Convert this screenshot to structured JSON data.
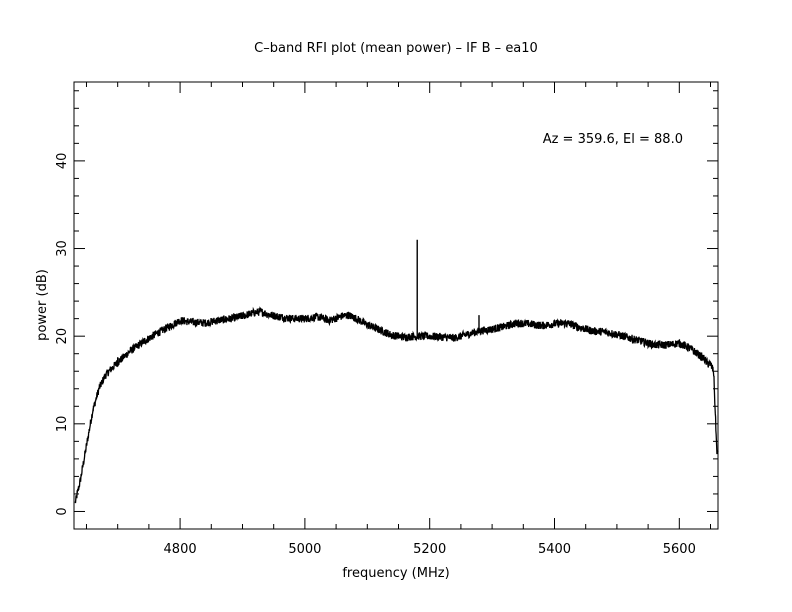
{
  "chart_data": {
    "type": "line",
    "title": "C–band RFI plot (mean power) – IF B – ea10",
    "xlabel": "frequency (MHz)",
    "ylabel": "power (dB)",
    "annotation": "Az = 359.6, El = 88.0",
    "xlim": [
      4630,
      5662
    ],
    "ylim": [
      -2,
      49
    ],
    "x_ticks": [
      4800,
      5000,
      5200,
      5400,
      5600
    ],
    "y_ticks": [
      0,
      10,
      20,
      30,
      40
    ],
    "x_ticks_text": [
      "4800",
      "5000",
      "5200",
      "5400",
      "5600"
    ],
    "y_ticks_text": [
      "0",
      "10",
      "20",
      "30",
      "40"
    ],
    "grid": false,
    "line_color": "#000000",
    "series": [
      {
        "x": [
          4632,
          4640,
          4650,
          4660,
          4670,
          4680,
          4690,
          4700,
          4720,
          4740,
          4760,
          4780,
          4800,
          4820,
          4840,
          4860,
          4880,
          4900,
          4920,
          4930,
          4940,
          4960,
          4980,
          5000,
          5020,
          5040,
          5060,
          5070,
          5080,
          5100,
          5120,
          5140,
          5160,
          5180,
          5200,
          5220,
          5240,
          5260,
          5280,
          5300,
          5320,
          5340,
          5360,
          5380,
          5400,
          5420,
          5440,
          5460,
          5480,
          5500,
          5520,
          5540,
          5560,
          5580,
          5600,
          5620,
          5640,
          5645,
          5650,
          5655,
          5660,
          5662
        ],
        "y": [
          1.0,
          3.5,
          7.5,
          11.5,
          14.0,
          15.5,
          16.3,
          17.0,
          18.3,
          19.3,
          20.2,
          21.0,
          21.8,
          21.6,
          21.5,
          21.8,
          22.0,
          22.3,
          22.7,
          22.8,
          22.5,
          22.2,
          22.0,
          22.0,
          22.2,
          21.8,
          22.3,
          22.4,
          22.1,
          21.3,
          20.7,
          20.1,
          19.9,
          20.0,
          20.0,
          19.9,
          19.8,
          20.2,
          20.6,
          20.8,
          21.1,
          21.5,
          21.4,
          21.2,
          21.4,
          21.5,
          21.0,
          20.6,
          20.5,
          20.2,
          19.8,
          19.4,
          19.0,
          19.0,
          19.2,
          18.5,
          17.4,
          16.9,
          16.8,
          16.0,
          7.0,
          6.5
        ]
      }
    ],
    "spikes": [
      {
        "x": 5180,
        "y": 31.0
      },
      {
        "x": 5279,
        "y": 22.4
      },
      {
        "x": 4700,
        "y": 17.6
      }
    ]
  }
}
